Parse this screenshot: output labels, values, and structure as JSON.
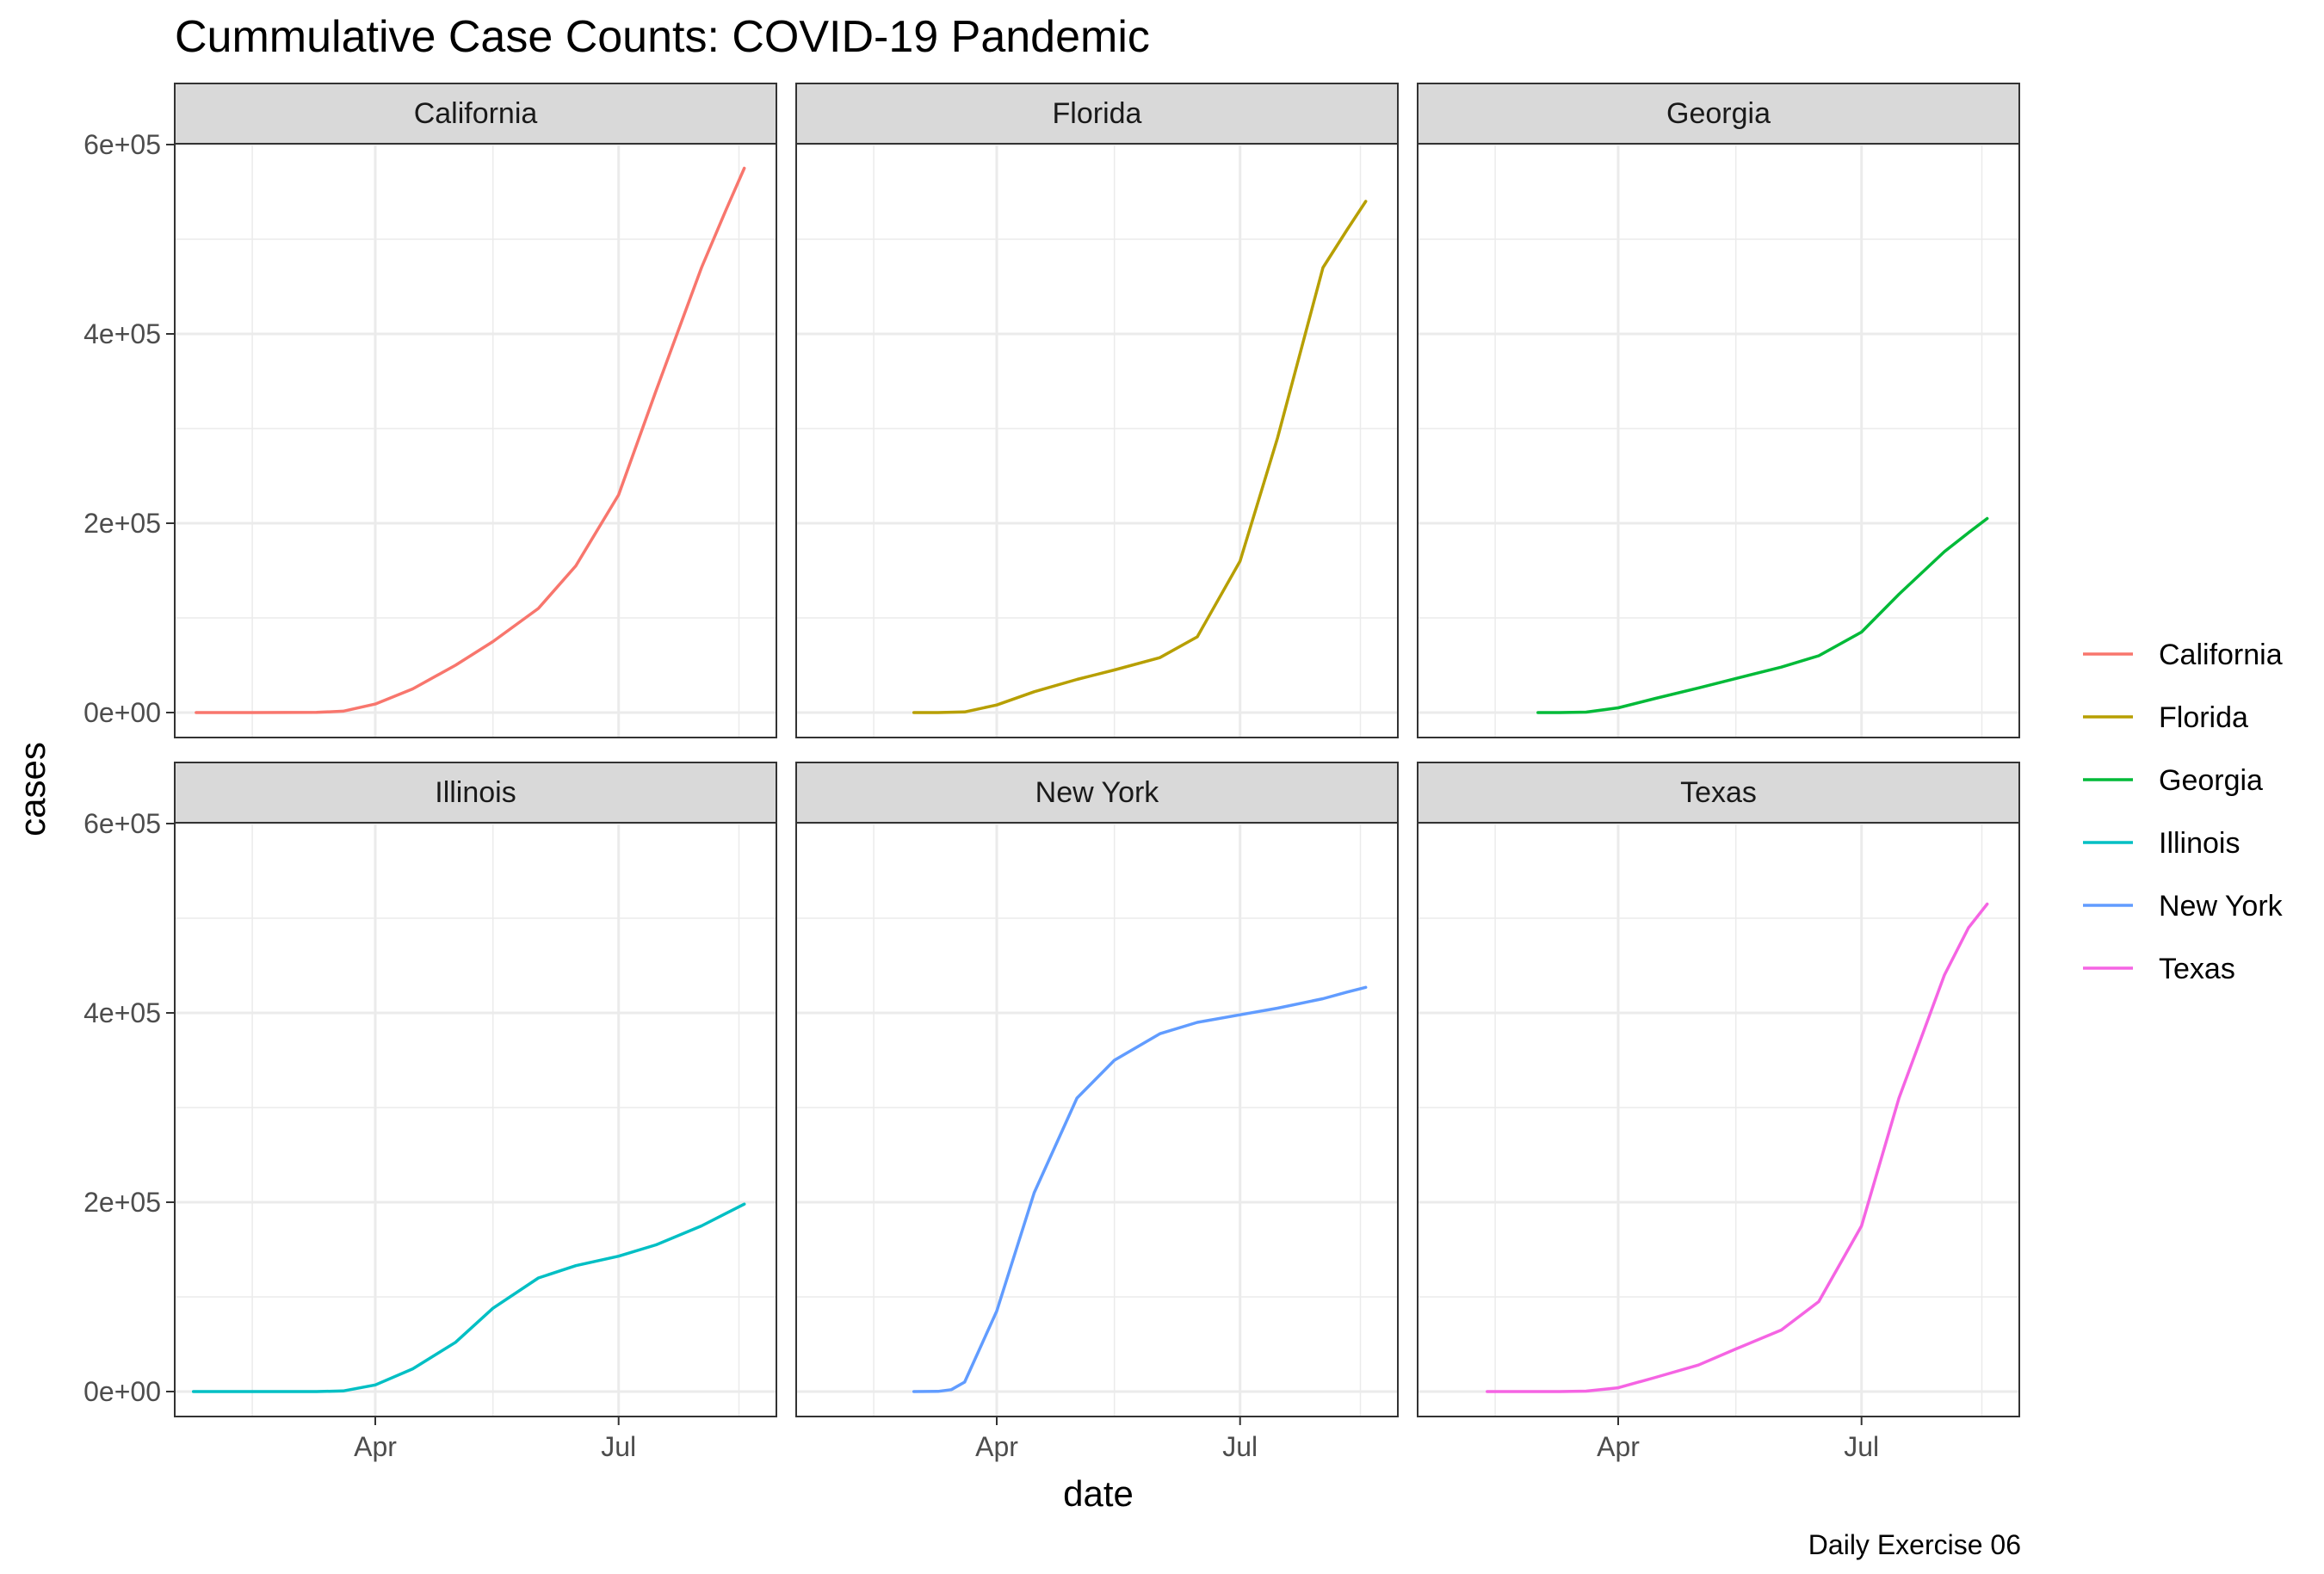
{
  "chart_data": {
    "type": "line",
    "title": "Cummulative Case Counts: COVID-19 Pandemic",
    "xlabel": "date",
    "ylabel": "cases",
    "caption": "Daily Exercise 06",
    "x_ticks": [
      "Apr",
      "Jul"
    ],
    "y_ticks": [
      "0e+00",
      "2e+05",
      "4e+05",
      "6e+05"
    ],
    "ylim": [
      -25000,
      600000
    ],
    "xlim": [
      "2020-01-17",
      "2020-08-29"
    ],
    "grid": true,
    "legend_position": "right",
    "facets": [
      "California",
      "Florida",
      "Georgia",
      "Illinois",
      "New York",
      "Texas"
    ],
    "series": [
      {
        "name": "California",
        "color": "#F8766D",
        "x": [
          "2020-01-25",
          "2020-02-15",
          "2020-03-10",
          "2020-03-20",
          "2020-04-01",
          "2020-04-15",
          "2020-05-01",
          "2020-05-15",
          "2020-06-01",
          "2020-06-15",
          "2020-07-01",
          "2020-07-15",
          "2020-08-01",
          "2020-08-10",
          "2020-08-17"
        ],
        "y": [
          0,
          0,
          200,
          1500,
          9000,
          25000,
          50000,
          75000,
          110000,
          155000,
          230000,
          340000,
          470000,
          530000,
          575000
        ]
      },
      {
        "name": "Florida",
        "color": "#B79F00",
        "x": [
          "2020-03-01",
          "2020-03-10",
          "2020-03-20",
          "2020-04-01",
          "2020-04-15",
          "2020-05-01",
          "2020-05-15",
          "2020-06-01",
          "2020-06-15",
          "2020-07-01",
          "2020-07-15",
          "2020-08-01",
          "2020-08-10",
          "2020-08-17"
        ],
        "y": [
          0,
          20,
          600,
          8000,
          22000,
          35000,
          45000,
          58000,
          80000,
          160000,
          290000,
          470000,
          510000,
          540000
        ]
      },
      {
        "name": "Georgia",
        "color": "#00BA38",
        "x": [
          "2020-03-02",
          "2020-03-10",
          "2020-03-20",
          "2020-04-01",
          "2020-04-15",
          "2020-05-01",
          "2020-05-15",
          "2020-06-01",
          "2020-06-15",
          "2020-07-01",
          "2020-07-15",
          "2020-08-01",
          "2020-08-10",
          "2020-08-17"
        ],
        "y": [
          0,
          20,
          500,
          5000,
          15000,
          26000,
          36000,
          48000,
          60000,
          85000,
          125000,
          170000,
          190000,
          205000
        ]
      },
      {
        "name": "Illinois",
        "color": "#00BFC4",
        "x": [
          "2020-01-24",
          "2020-02-15",
          "2020-03-10",
          "2020-03-20",
          "2020-04-01",
          "2020-04-15",
          "2020-05-01",
          "2020-05-15",
          "2020-06-01",
          "2020-06-15",
          "2020-07-01",
          "2020-07-15",
          "2020-08-01",
          "2020-08-10",
          "2020-08-17"
        ],
        "y": [
          0,
          0,
          20,
          600,
          7000,
          24000,
          52000,
          88000,
          120000,
          133000,
          143000,
          155000,
          175000,
          188000,
          198000
        ]
      },
      {
        "name": "New York",
        "color": "#619CFF",
        "x": [
          "2020-03-01",
          "2020-03-10",
          "2020-03-15",
          "2020-03-20",
          "2020-04-01",
          "2020-04-15",
          "2020-05-01",
          "2020-05-15",
          "2020-06-01",
          "2020-06-15",
          "2020-07-01",
          "2020-07-15",
          "2020-08-01",
          "2020-08-10",
          "2020-08-17"
        ],
        "y": [
          0,
          200,
          2000,
          10000,
          85000,
          210000,
          310000,
          350000,
          378000,
          390000,
          398000,
          405000,
          415000,
          422000,
          427000
        ]
      },
      {
        "name": "Texas",
        "color": "#F564E3",
        "x": [
          "2020-02-12",
          "2020-03-10",
          "2020-03-20",
          "2020-04-01",
          "2020-04-15",
          "2020-05-01",
          "2020-05-15",
          "2020-06-01",
          "2020-06-15",
          "2020-07-01",
          "2020-07-15",
          "2020-08-01",
          "2020-08-10",
          "2020-08-17"
        ],
        "y": [
          0,
          20,
          500,
          4000,
          15000,
          28000,
          45000,
          65000,
          95000,
          175000,
          310000,
          440000,
          490000,
          515000
        ]
      }
    ]
  }
}
